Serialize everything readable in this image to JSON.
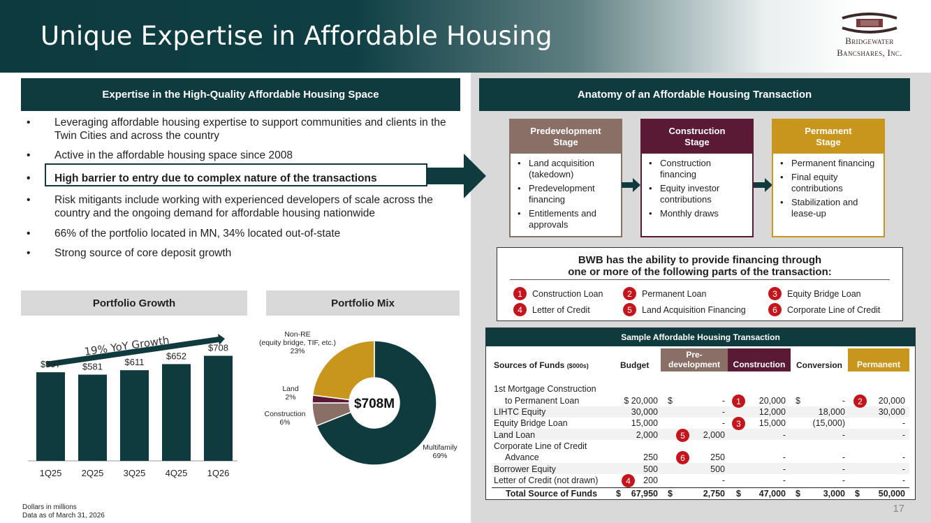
{
  "header": {
    "title": "Unique Expertise in Affordable Housing",
    "logo_line1": "Bridgewater",
    "logo_line2": "Bancshares, Inc."
  },
  "left": {
    "section_title": "Expertise in the High-Quality Affordable Housing Space",
    "bullets": [
      "Leveraging affordable housing expertise to support communities and clients in the Twin Cities and across the country",
      "Active in the affordable housing space since 2008",
      "High barrier to entry due to complex nature of the transactions",
      "Risk mitigants include working with experienced developers of scale across the country and the ongoing demand for affordable housing nationwide",
      "66% of the portfolio located in MN, 34% located out-of-state",
      "Strong source of core deposit growth"
    ]
  },
  "growth": {
    "title": "Portfolio Growth",
    "annotation": "19% YoY Growth"
  },
  "mix": {
    "title": "Portfolio Mix",
    "center_label": "$708M"
  },
  "chart_data": [
    {
      "type": "bar",
      "title": "Portfolio Growth",
      "categories": [
        "1Q25",
        "2Q25",
        "3Q25",
        "4Q25",
        "1Q26"
      ],
      "values": [
        597,
        581,
        611,
        652,
        708
      ],
      "value_labels": [
        "$597",
        "$581",
        "$611",
        "$652",
        "$708"
      ],
      "color": "#0f3a3e",
      "annotation": "19% YoY Growth"
    },
    {
      "type": "pie",
      "title": "Portfolio Mix",
      "center_label": "$708M",
      "slices": [
        {
          "label": "Multifamily",
          "pct_label": "69%",
          "value": 69,
          "color": "#0f3a3e"
        },
        {
          "label": "Construction",
          "pct_label": "6%",
          "value": 6,
          "color": "#8a6f66"
        },
        {
          "label": "Land",
          "pct_label": "2%",
          "value": 2,
          "color": "#5a1a36"
        },
        {
          "label": "Non-RE\n(equity bridge, TIF, etc.)",
          "pct_label": "23%",
          "value": 23,
          "color": "#c8961c"
        }
      ]
    }
  ],
  "anatomy": {
    "title": "Anatomy of an Affordable Housing Transaction",
    "stages": [
      {
        "line1": "Predevelopment",
        "line2": "Stage",
        "color": "#8a6f66",
        "items": [
          "Land acquisition (takedown)",
          "Predevelopment financing",
          "Entitlements and approvals"
        ]
      },
      {
        "line1": "Construction",
        "line2": "Stage",
        "color": "#5a1a36",
        "items": [
          "Construction financing",
          "Equity investor contributions",
          "Monthly draws"
        ]
      },
      {
        "line1": "Permanent",
        "line2": "Stage",
        "color": "#c8961c",
        "items": [
          "Permanent financing",
          "Final equity contributions",
          "Stabilization and lease-up"
        ]
      }
    ]
  },
  "financing": {
    "heading1": "BWB has the ability to provide financing through",
    "heading2": "one or more of the following parts of the transaction:",
    "options": [
      {
        "n": "1",
        "label": "Construction Loan"
      },
      {
        "n": "2",
        "label": "Permanent Loan"
      },
      {
        "n": "3",
        "label": "Equity Bridge Loan"
      },
      {
        "n": "4",
        "label": "Letter of Credit"
      },
      {
        "n": "5",
        "label": "Land Acquisition Financing"
      },
      {
        "n": "6",
        "label": "Corporate Line of Credit"
      }
    ]
  },
  "table": {
    "title": "Sample Affordable Housing Transaction",
    "sources_label": "Sources of Funds",
    "sources_unit": "($000s)",
    "columns": [
      "Budget",
      "Pre-\ndevelopment",
      "Construction",
      "Conversion",
      "Permanent"
    ],
    "rows": [
      {
        "label": "1st Mortgage Construction",
        "label2": "to Permanent Loan",
        "cells": [
          "$  20,000",
          "$",
          "-",
          "20,000",
          "$",
          "-",
          "20,000"
        ]
      },
      {
        "label": "LIHTC Equity",
        "cells": [
          "30,000",
          "-",
          "12,000",
          "18,000",
          "30,000"
        ]
      },
      {
        "label": "Equity Bridge Loan",
        "cells": [
          "15,000",
          "-",
          "15,000",
          "(15,000)",
          "-"
        ]
      },
      {
        "label": "Land Loan",
        "cells": [
          "2,000",
          "2,000",
          "-",
          "-",
          "-"
        ]
      },
      {
        "label": "Corporate Line of Credit",
        "label2": "Advance",
        "cells": [
          "250",
          "250",
          "-",
          "-",
          "-"
        ]
      },
      {
        "label": "Borrower Equity",
        "cells": [
          "500",
          "500",
          "-",
          "-",
          "-"
        ]
      },
      {
        "label": "Letter of Credit (not drawn)",
        "cells": [
          "200",
          "-",
          "-",
          "-",
          "-"
        ]
      }
    ],
    "total": {
      "label": "Total Source of Funds",
      "cells": [
        "67,950",
        "2,750",
        "47,000",
        "3,000",
        "50,000"
      ]
    },
    "dollar": "$"
  },
  "footer": {
    "note1": "Dollars in millions",
    "note2": "Data as of March 31, 2026",
    "page": "17"
  }
}
